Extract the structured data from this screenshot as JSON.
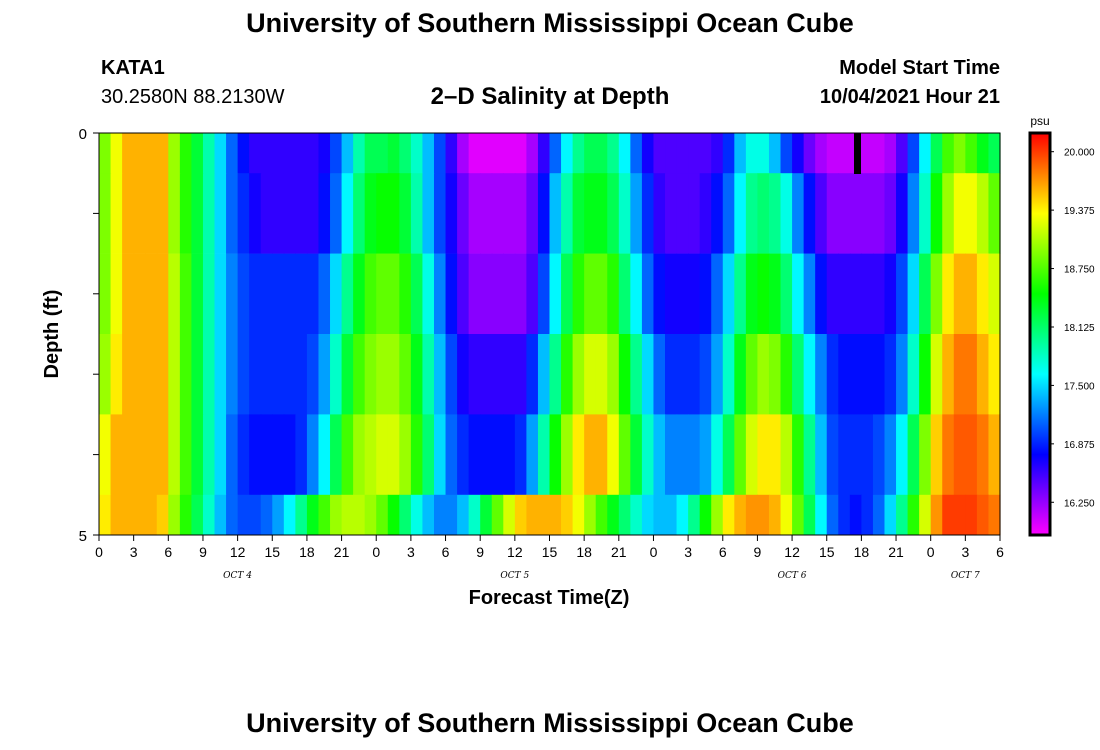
{
  "header": {
    "title": "University of Southern Mississippi Ocean Cube",
    "station": "KATA1",
    "coords": "30.2580N  88.2130W",
    "subtitle": "2–D Salinity at Depth",
    "model_start_label": "Model Start Time",
    "model_start_value": "10/04/2021 Hour 21"
  },
  "footer": {
    "title": "University of Southern Mississippi Ocean Cube"
  },
  "chart_data": {
    "type": "heatmap",
    "title": "2–D Salinity at Depth",
    "xlabel": "Forecast Time(Z)",
    "ylabel": "Depth (ft)",
    "ylim": [
      0,
      5
    ],
    "y_tick_labels": [
      "0",
      "5"
    ],
    "x_tick_labels": [
      "0",
      "3",
      "6",
      "9",
      "12",
      "15",
      "18",
      "21",
      "0",
      "3",
      "6",
      "9",
      "12",
      "15",
      "18",
      "21",
      "0",
      "3",
      "6",
      "9",
      "12",
      "15",
      "18",
      "21",
      "0",
      "3",
      "6"
    ],
    "day_labels": [
      "OCT 4",
      "OCT 5",
      "OCT 6",
      "OCT 7"
    ],
    "colorbar": {
      "unit": "psu",
      "range": [
        15.9,
        20.2
      ],
      "tick_labels": [
        "20.000",
        "19.375",
        "18.750",
        "18.125",
        "17.500",
        "16.875",
        "16.250"
      ],
      "tick_values": [
        20.0,
        19.375,
        18.75,
        18.125,
        17.5,
        16.875,
        16.25
      ]
    },
    "depth_layers_ft": [
      0.25,
      0.75,
      1.75,
      2.75,
      3.75,
      4.75
    ],
    "salinity_psu": [
      [
        18.9,
        19.3,
        19.6,
        19.6,
        19.6,
        19.6,
        19.0,
        18.6,
        18.3,
        17.9,
        17.5,
        17.1,
        16.8,
        16.6,
        16.6,
        16.6,
        16.6,
        16.6,
        16.6,
        16.7,
        17.0,
        17.4,
        17.9,
        18.2,
        18.2,
        18.3,
        18.1,
        17.8,
        17.4,
        17.0,
        16.6,
        16.2,
        16.0,
        16.0,
        16.0,
        16.0,
        16.0,
        16.2,
        16.6,
        17.1,
        17.6,
        18.0,
        18.2,
        18.2,
        18.0,
        17.6,
        17.1,
        16.7,
        16.5,
        16.5,
        16.5,
        16.5,
        16.5,
        16.6,
        16.9,
        17.4,
        17.7,
        17.7,
        17.4,
        17.0,
        16.7,
        16.4,
        16.2,
        16.1,
        16.1,
        16.1,
        16.1,
        16.1,
        16.2,
        16.5,
        17.0,
        17.6,
        18.2,
        18.7,
        18.9,
        18.7,
        18.4,
        18.2
      ],
      [
        18.9,
        19.3,
        19.6,
        19.6,
        19.6,
        19.6,
        19.0,
        18.6,
        18.3,
        17.9,
        17.5,
        17.1,
        16.9,
        16.7,
        16.6,
        16.6,
        16.6,
        16.6,
        16.6,
        16.8,
        17.1,
        17.6,
        18.1,
        18.4,
        18.5,
        18.5,
        18.3,
        17.9,
        17.4,
        17.0,
        16.7,
        16.4,
        16.2,
        16.2,
        16.2,
        16.2,
        16.2,
        16.4,
        16.8,
        17.4,
        17.9,
        18.3,
        18.4,
        18.4,
        18.2,
        17.8,
        17.3,
        16.9,
        16.6,
        16.5,
        16.5,
        16.5,
        16.6,
        16.8,
        17.1,
        17.6,
        18.0,
        18.1,
        18.0,
        17.7,
        17.2,
        16.8,
        16.5,
        16.3,
        16.3,
        16.3,
        16.3,
        16.3,
        16.4,
        16.7,
        17.2,
        17.8,
        18.5,
        19.0,
        19.3,
        19.3,
        19.1,
        18.8
      ],
      [
        18.9,
        19.3,
        19.6,
        19.6,
        19.6,
        19.6,
        19.1,
        18.7,
        18.3,
        17.9,
        17.5,
        17.2,
        17.0,
        16.9,
        16.9,
        16.9,
        16.9,
        16.9,
        16.9,
        17.1,
        17.5,
        18.0,
        18.4,
        18.7,
        18.8,
        18.8,
        18.6,
        18.2,
        17.7,
        17.2,
        16.8,
        16.5,
        16.3,
        16.3,
        16.3,
        16.3,
        16.3,
        16.5,
        17.0,
        17.6,
        18.2,
        18.6,
        18.8,
        18.8,
        18.6,
        18.1,
        17.6,
        17.1,
        16.8,
        16.7,
        16.7,
        16.7,
        16.8,
        17.1,
        17.5,
        18.0,
        18.4,
        18.5,
        18.4,
        18.1,
        17.6,
        17.2,
        16.8,
        16.6,
        16.6,
        16.6,
        16.6,
        16.6,
        16.7,
        17.0,
        17.5,
        18.2,
        18.9,
        19.4,
        19.6,
        19.6,
        19.4,
        19.2
      ],
      [
        19.0,
        19.4,
        19.6,
        19.6,
        19.6,
        19.6,
        19.1,
        18.7,
        18.3,
        17.9,
        17.5,
        17.2,
        17.0,
        16.9,
        16.9,
        16.9,
        16.9,
        16.9,
        17.0,
        17.3,
        17.8,
        18.3,
        18.7,
        18.9,
        19.0,
        19.0,
        18.8,
        18.4,
        17.9,
        17.4,
        17.0,
        16.7,
        16.6,
        16.6,
        16.6,
        16.6,
        16.6,
        16.9,
        17.4,
        18.0,
        18.6,
        19.0,
        19.2,
        19.2,
        19.0,
        18.5,
        18.0,
        17.5,
        17.1,
        16.9,
        16.9,
        16.9,
        17.0,
        17.3,
        17.8,
        18.4,
        18.8,
        19.0,
        18.9,
        18.6,
        18.1,
        17.6,
        17.2,
        16.9,
        16.8,
        16.8,
        16.8,
        16.8,
        16.9,
        17.2,
        17.8,
        18.5,
        19.2,
        19.6,
        19.8,
        19.8,
        19.6,
        19.4
      ],
      [
        19.3,
        19.6,
        19.6,
        19.6,
        19.6,
        19.6,
        19.1,
        18.7,
        18.3,
        17.9,
        17.5,
        17.1,
        16.9,
        16.8,
        16.8,
        16.8,
        16.8,
        16.9,
        17.2,
        17.6,
        18.2,
        18.7,
        19.0,
        19.1,
        19.2,
        19.2,
        19.0,
        18.6,
        18.1,
        17.5,
        17.1,
        16.9,
        16.8,
        16.8,
        16.8,
        16.8,
        16.9,
        17.3,
        17.9,
        18.5,
        19.0,
        19.4,
        19.6,
        19.6,
        19.3,
        18.8,
        18.3,
        17.8,
        17.4,
        17.2,
        17.2,
        17.2,
        17.3,
        17.7,
        18.2,
        18.8,
        19.2,
        19.4,
        19.4,
        19.1,
        18.6,
        18.0,
        17.4,
        17.0,
        16.9,
        16.9,
        16.9,
        17.0,
        17.2,
        17.6,
        18.2,
        18.9,
        19.5,
        19.8,
        19.9,
        19.9,
        19.8,
        19.6
      ],
      [
        19.4,
        19.6,
        19.6,
        19.6,
        19.6,
        19.5,
        19.0,
        18.6,
        18.2,
        17.8,
        17.4,
        17.1,
        17.0,
        17.0,
        17.1,
        17.3,
        17.6,
        18.0,
        18.4,
        18.7,
        19.0,
        19.1,
        19.1,
        19.0,
        18.8,
        18.5,
        18.1,
        17.7,
        17.4,
        17.2,
        17.2,
        17.4,
        17.8,
        18.3,
        18.8,
        19.2,
        19.5,
        19.6,
        19.6,
        19.6,
        19.5,
        19.3,
        19.0,
        18.7,
        18.4,
        18.1,
        17.8,
        17.5,
        17.4,
        17.4,
        17.6,
        18.0,
        18.5,
        19.0,
        19.4,
        19.6,
        19.7,
        19.7,
        19.6,
        19.3,
        18.8,
        18.2,
        17.6,
        17.1,
        16.9,
        16.8,
        16.9,
        17.1,
        17.5,
        18.0,
        18.6,
        19.2,
        19.7,
        20.0,
        20.0,
        20.0,
        19.9,
        19.8
      ]
    ]
  }
}
